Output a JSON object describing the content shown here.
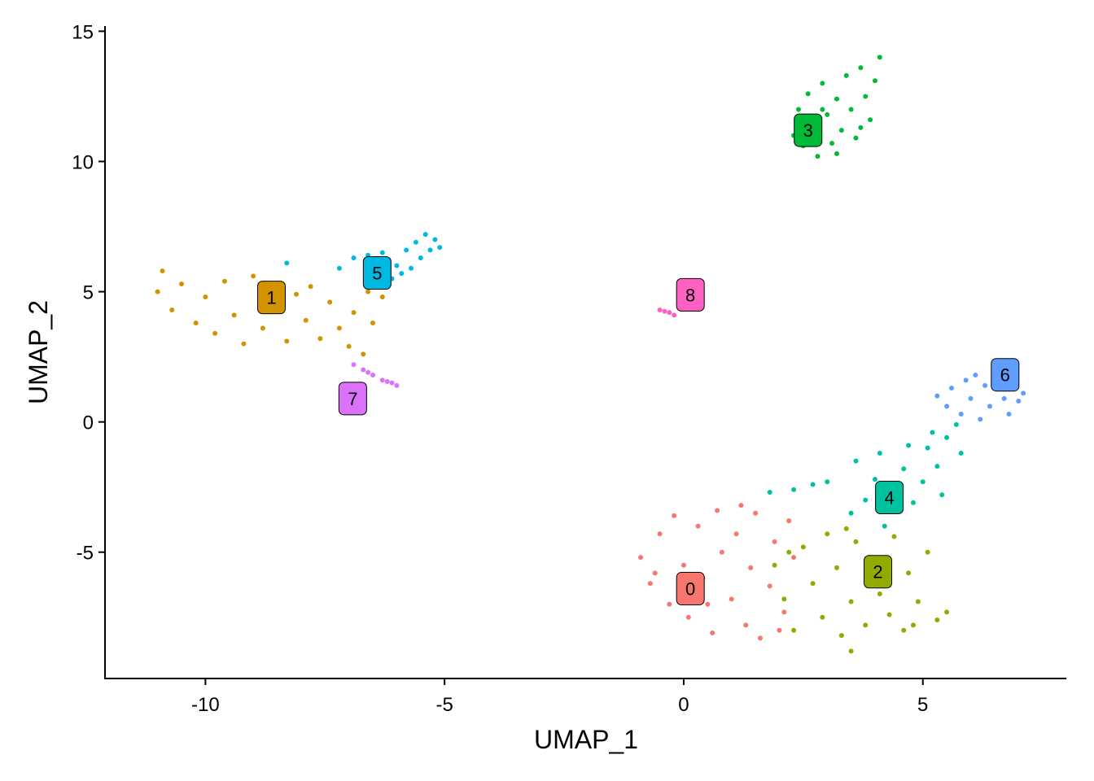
{
  "chart_data": {
    "type": "scatter",
    "xlabel": "UMAP_1",
    "ylabel": "UMAP_2",
    "xlim": [
      -12.1,
      8.0
    ],
    "ylim": [
      -9.85,
      15.2
    ],
    "xticks": [
      -10,
      -5,
      0,
      5
    ],
    "yticks": [
      -5,
      0,
      5,
      10,
      15
    ],
    "series": [
      {
        "name": "0",
        "color": "#F8766D",
        "label_x": 0.14,
        "label_y": -6.4,
        "x": [
          -0.9,
          -0.7,
          -0.5,
          -0.3,
          -0.2,
          0,
          0.1,
          0.3,
          0.4,
          0.6,
          0.7,
          0.8,
          1.0,
          1.1,
          1.3,
          1.4,
          1.5,
          1.6,
          1.8,
          1.9,
          2.1,
          2.2,
          2.0,
          0.5,
          -0.6,
          1.2,
          2.3
        ],
        "y": [
          -5.2,
          -6.2,
          -4.3,
          -7.0,
          -3.6,
          -5.5,
          -7.5,
          -4.0,
          -6.0,
          -8.1,
          -3.4,
          -5.0,
          -6.8,
          -4.3,
          -7.8,
          -5.6,
          -3.5,
          -8.3,
          -6.3,
          -4.6,
          -7.3,
          -3.8,
          -8.0,
          -7.0,
          -5.8,
          -3.2,
          -5.2
        ]
      },
      {
        "name": "1",
        "color": "#D39200",
        "label_x": -8.62,
        "label_y": 4.78,
        "x": [
          -11,
          -10.9,
          -10.7,
          -10.5,
          -10.2,
          -10,
          -9.8,
          -9.6,
          -9.4,
          -9.2,
          -9,
          -8.8,
          -8.6,
          -8.3,
          -8.1,
          -7.9,
          -7.6,
          -7.4,
          -7.2,
          -7,
          -6.9,
          -6.7,
          -6.6,
          -6.5,
          -6.3,
          -7.8
        ],
        "y": [
          5.0,
          5.8,
          4.3,
          5.3,
          3.8,
          4.8,
          3.4,
          5.4,
          4.1,
          3.0,
          5.6,
          3.6,
          4.5,
          3.1,
          4.9,
          3.9,
          3.2,
          4.6,
          3.6,
          2.9,
          4.2,
          2.6,
          5.0,
          3.8,
          4.8,
          5.2
        ]
      },
      {
        "name": "2",
        "color": "#93AA00",
        "label_x": 4.06,
        "label_y": -5.75,
        "x": [
          1.9,
          2.1,
          2.3,
          2.5,
          2.7,
          2.9,
          3.0,
          3.2,
          3.3,
          3.5,
          3.5,
          3.6,
          3.8,
          4.0,
          4.1,
          4.3,
          4.4,
          4.6,
          4.7,
          4.9,
          5.1,
          5.3,
          5.5,
          3.4,
          2.2,
          4.8
        ],
        "y": [
          -5.5,
          -6.8,
          -8.0,
          -4.8,
          -6.2,
          -7.5,
          -4.3,
          -5.6,
          -8.2,
          -6.9,
          -8.8,
          -4.6,
          -7.8,
          -5.3,
          -6.6,
          -7.4,
          -4.4,
          -8.0,
          -5.8,
          -6.9,
          -5.0,
          -7.6,
          -7.3,
          -4.1,
          -5.0,
          -7.8
        ]
      },
      {
        "name": "3",
        "color": "#00BA38",
        "label_x": 2.6,
        "label_y": 11.2,
        "x": [
          2.3,
          2.4,
          2.5,
          2.6,
          2.7,
          2.8,
          2.9,
          3.0,
          3.1,
          3.2,
          3.3,
          3.4,
          3.5,
          3.6,
          3.7,
          3.8,
          3.9,
          4.0,
          4.1,
          3.2,
          2.9,
          3.7
        ],
        "y": [
          11.0,
          12.0,
          10.6,
          12.6,
          11.5,
          10.2,
          13.0,
          11.8,
          10.7,
          12.4,
          11.2,
          13.3,
          12.0,
          10.9,
          13.6,
          12.5,
          11.6,
          13.1,
          14.0,
          10.3,
          12.0,
          11.3
        ]
      },
      {
        "name": "4",
        "color": "#00C19F",
        "label_x": 4.3,
        "label_y": -2.9,
        "x": [
          1.8,
          2.3,
          2.7,
          3.0,
          3.5,
          3.6,
          3.8,
          4.0,
          4.1,
          4.3,
          4.4,
          4.6,
          4.7,
          4.8,
          5.0,
          5.1,
          5.2,
          5.3,
          5.4,
          5.5,
          5.7,
          5.8,
          4.2
        ],
        "y": [
          -2.7,
          -2.6,
          -2.4,
          -2.3,
          -3.5,
          -1.5,
          -3.0,
          -2.2,
          -1.2,
          -3.4,
          -2.6,
          -1.8,
          -0.9,
          -3.1,
          -2.3,
          -1.0,
          -0.4,
          -1.7,
          -2.8,
          -0.6,
          -0.1,
          -1.2,
          -4.0
        ]
      },
      {
        "name": "5",
        "color": "#00B9E3",
        "label_x": -6.41,
        "label_y": 5.72,
        "x": [
          -7.2,
          -6.9,
          -6.6,
          -6.3,
          -6.1,
          -6.0,
          -5.8,
          -5.7,
          -5.6,
          -5.5,
          -5.4,
          -5.3,
          -5.2,
          -5.1,
          -6.4,
          -5.9,
          -8.3
        ],
        "y": [
          5.9,
          6.3,
          6.4,
          6.5,
          5.5,
          6.0,
          6.6,
          5.9,
          6.9,
          6.3,
          7.2,
          6.6,
          7.0,
          6.7,
          5.2,
          5.7,
          6.1
        ]
      },
      {
        "name": "6",
        "color": "#619CFF",
        "label_x": 6.72,
        "label_y": 1.81,
        "x": [
          5.3,
          5.5,
          5.6,
          5.8,
          5.9,
          6.0,
          6.2,
          6.3,
          6.4,
          6.6,
          6.7,
          6.8,
          6.9,
          7.0,
          7.1,
          6.1
        ],
        "y": [
          1.0,
          0.6,
          1.3,
          0.3,
          1.6,
          0.9,
          0.1,
          1.4,
          0.6,
          1.8,
          0.9,
          0.3,
          1.3,
          0.8,
          1.1,
          1.8
        ]
      },
      {
        "name": "7",
        "color": "#DB72FB",
        "label_x": -6.92,
        "label_y": 0.9,
        "x": [
          -6.9,
          -6.7,
          -6.5,
          -6.3,
          -6.1,
          -6.0,
          -6.6,
          -6.2
        ],
        "y": [
          2.2,
          2.0,
          1.8,
          1.6,
          1.5,
          1.4,
          1.9,
          1.55
        ]
      },
      {
        "name": "8",
        "color": "#FF61C3",
        "label_x": 0.14,
        "label_y": 4.88,
        "x": [
          -0.5,
          -0.4,
          -0.3,
          -0.2
        ],
        "y": [
          4.3,
          4.25,
          4.2,
          4.1
        ]
      }
    ]
  }
}
